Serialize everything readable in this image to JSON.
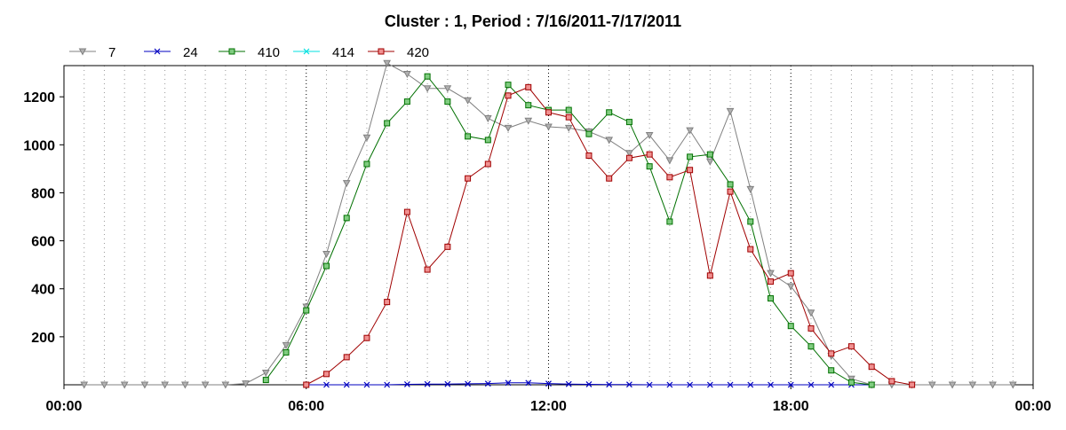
{
  "chart_data": {
    "type": "line",
    "title": "Cluster : 1, Period : 7/16/2011-7/17/2011",
    "xlabel": "",
    "ylabel": "",
    "x_range_hours": [
      0,
      24
    ],
    "ylim": [
      0,
      1330
    ],
    "x_ticks": [
      {
        "hour": 0,
        "label": "00:00"
      },
      {
        "hour": 6,
        "label": "06:00"
      },
      {
        "hour": 12,
        "label": "12:00"
      },
      {
        "hour": 18,
        "label": "18:00"
      },
      {
        "hour": 24,
        "label": "00:00"
      }
    ],
    "y_ticks": [
      200,
      400,
      600,
      800,
      1000,
      1200
    ],
    "grid": true,
    "legend_position": "top-left",
    "series": [
      {
        "name": "7",
        "color": "#808080",
        "marker": "triangle-down",
        "points": [
          [
            0.5,
            0
          ],
          [
            1,
            0
          ],
          [
            1.5,
            0
          ],
          [
            2,
            0
          ],
          [
            2.5,
            0
          ],
          [
            3,
            0
          ],
          [
            3.5,
            0
          ],
          [
            4,
            0
          ],
          [
            4.5,
            5
          ],
          [
            5,
            50
          ],
          [
            5.5,
            165
          ],
          [
            6,
            325
          ],
          [
            6.5,
            545
          ],
          [
            7,
            840
          ],
          [
            7.5,
            1030
          ],
          [
            8,
            1340
          ],
          [
            8.5,
            1295
          ],
          [
            9,
            1235
          ],
          [
            9.5,
            1235
          ],
          [
            10,
            1185
          ],
          [
            10.5,
            1110
          ],
          [
            11,
            1070
          ],
          [
            11.5,
            1100
          ],
          [
            12,
            1075
          ],
          [
            12.5,
            1070
          ],
          [
            13,
            1055
          ],
          [
            13.5,
            1020
          ],
          [
            14,
            965
          ],
          [
            14.5,
            1040
          ],
          [
            15,
            935
          ],
          [
            15.5,
            1060
          ],
          [
            16,
            930
          ],
          [
            16.5,
            1140
          ],
          [
            17,
            815
          ],
          [
            17.5,
            465
          ],
          [
            18,
            410
          ],
          [
            18.5,
            300
          ],
          [
            19,
            120
          ],
          [
            19.5,
            25
          ],
          [
            20,
            0
          ],
          [
            20.5,
            0
          ],
          [
            21,
            0
          ],
          [
            21.5,
            0
          ],
          [
            22,
            0
          ],
          [
            22.5,
            0
          ],
          [
            23,
            0
          ],
          [
            23.5,
            0
          ]
        ]
      },
      {
        "name": "24",
        "color": "#0000c0",
        "marker": "x",
        "points": [
          [
            6,
            0
          ],
          [
            6.5,
            0
          ],
          [
            7,
            0
          ],
          [
            7.5,
            0
          ],
          [
            8,
            0
          ],
          [
            8.5,
            2
          ],
          [
            9,
            3
          ],
          [
            9.5,
            3
          ],
          [
            10,
            4
          ],
          [
            10.5,
            5
          ],
          [
            11,
            8
          ],
          [
            11.5,
            8
          ],
          [
            12,
            5
          ],
          [
            12.5,
            3
          ],
          [
            13,
            2
          ],
          [
            13.5,
            1
          ],
          [
            14,
            1
          ],
          [
            14.5,
            0
          ],
          [
            15,
            0
          ],
          [
            15.5,
            0
          ],
          [
            16,
            0
          ],
          [
            16.5,
            0
          ],
          [
            17,
            0
          ],
          [
            17.5,
            0
          ],
          [
            18,
            0
          ],
          [
            18.5,
            0
          ],
          [
            19,
            0
          ],
          [
            19.5,
            0
          ],
          [
            20,
            0
          ]
        ]
      },
      {
        "name": "410",
        "color": "#007000",
        "marker_fill": "#80cc80",
        "marker": "square",
        "points": [
          [
            5,
            20
          ],
          [
            5.5,
            135
          ],
          [
            6,
            310
          ],
          [
            6.5,
            495
          ],
          [
            7,
            695
          ],
          [
            7.5,
            920
          ],
          [
            8,
            1090
          ],
          [
            8.5,
            1180
          ],
          [
            9,
            1285
          ],
          [
            9.5,
            1180
          ],
          [
            10,
            1035
          ],
          [
            10.5,
            1020
          ],
          [
            11,
            1250
          ],
          [
            11.5,
            1165
          ],
          [
            12,
            1145
          ],
          [
            12.5,
            1145
          ],
          [
            13,
            1045
          ],
          [
            13.5,
            1135
          ],
          [
            14,
            1095
          ],
          [
            14.5,
            910
          ],
          [
            15,
            680
          ],
          [
            15.5,
            950
          ],
          [
            16,
            960
          ],
          [
            16.5,
            835
          ],
          [
            17,
            680
          ],
          [
            17.5,
            360
          ],
          [
            18,
            245
          ],
          [
            18.5,
            160
          ],
          [
            19,
            60
          ],
          [
            19.5,
            10
          ],
          [
            20,
            0
          ]
        ]
      },
      {
        "name": "414",
        "color": "#00e0e0",
        "marker": "x",
        "points": []
      },
      {
        "name": "420",
        "color": "#a00000",
        "marker_fill": "#f09090",
        "marker": "square",
        "points": [
          [
            6,
            0
          ],
          [
            6.5,
            45
          ],
          [
            7,
            115
          ],
          [
            7.5,
            195
          ],
          [
            8,
            345
          ],
          [
            8.5,
            720
          ],
          [
            9,
            480
          ],
          [
            9.5,
            575
          ],
          [
            10,
            860
          ],
          [
            10.5,
            920
          ],
          [
            11,
            1205
          ],
          [
            11.5,
            1240
          ],
          [
            12,
            1135
          ],
          [
            12.5,
            1115
          ],
          [
            13,
            955
          ],
          [
            13.5,
            860
          ],
          [
            14,
            945
          ],
          [
            14.5,
            960
          ],
          [
            15,
            865
          ],
          [
            15.5,
            895
          ],
          [
            16,
            455
          ],
          [
            16.5,
            805
          ],
          [
            17,
            565
          ],
          [
            17.5,
            430
          ],
          [
            18,
            465
          ],
          [
            18.5,
            235
          ],
          [
            19,
            130
          ],
          [
            19.5,
            160
          ],
          [
            20,
            75
          ],
          [
            20.5,
            15
          ],
          [
            21,
            0
          ]
        ]
      }
    ]
  }
}
